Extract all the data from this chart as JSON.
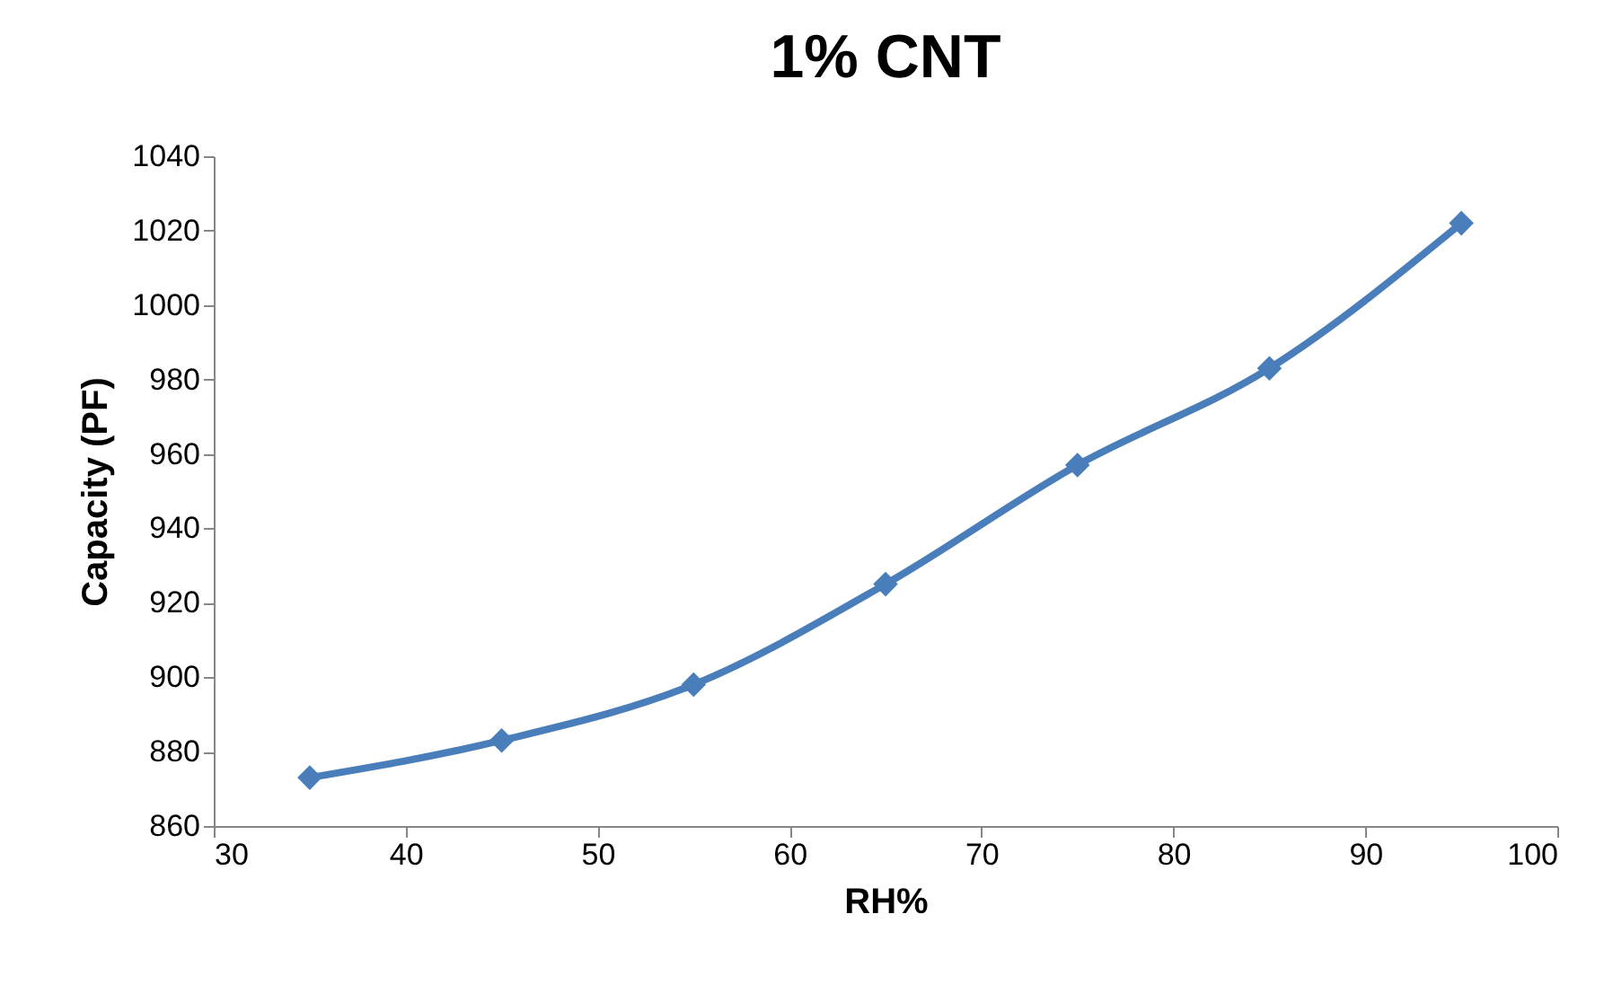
{
  "chart_data": {
    "type": "line",
    "title": "1% CNT",
    "xlabel": "RH%",
    "ylabel": "Capacity (PF)",
    "x": [
      35,
      45,
      55,
      65,
      75,
      85,
      95
    ],
    "series": [
      {
        "color": "#4a7ebb",
        "values": [
          873,
          883,
          898,
          925,
          957,
          983,
          1022
        ]
      }
    ],
    "xlim": [
      30,
      100
    ],
    "xticks": [
      30,
      40,
      50,
      60,
      70,
      80,
      90,
      100
    ],
    "ylim": [
      860,
      1040
    ],
    "yticks": [
      860,
      880,
      900,
      920,
      940,
      960,
      980,
      1000,
      1020,
      1040
    ],
    "grid": false,
    "legend": false,
    "marker": "diamond",
    "line_style": "solid"
  }
}
